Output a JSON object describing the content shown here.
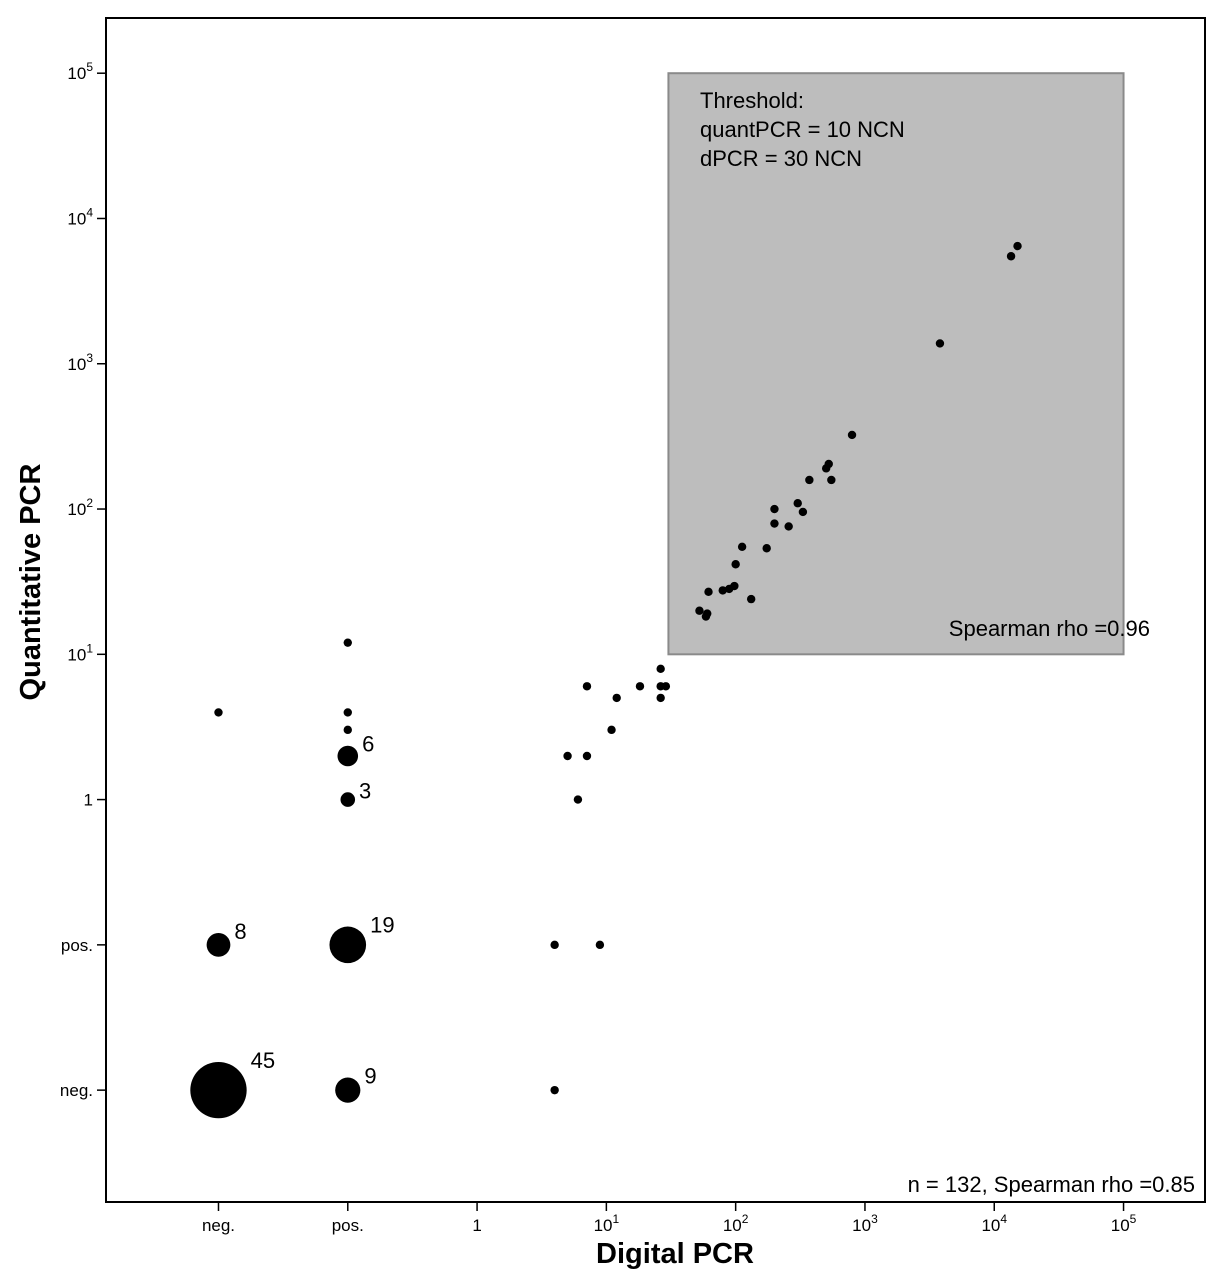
{
  "chart_data": {
    "type": "scatter",
    "title": "",
    "xlabel": "Digital PCR",
    "ylabel": "Quantitative PCR",
    "axis_scale": "categorical neg./pos. then log10",
    "xticks": [
      {
        "pos": -2,
        "base": "neg.",
        "exp": ""
      },
      {
        "pos": -1,
        "base": "pos.",
        "exp": ""
      },
      {
        "pos": 0,
        "base": "1",
        "exp": ""
      },
      {
        "pos": 1,
        "base": "10",
        "exp": "1"
      },
      {
        "pos": 2,
        "base": "10",
        "exp": "2"
      },
      {
        "pos": 3,
        "base": "10",
        "exp": "3"
      },
      {
        "pos": 4,
        "base": "10",
        "exp": "4"
      },
      {
        "pos": 5,
        "base": "10",
        "exp": "5"
      }
    ],
    "yticks": [
      {
        "pos": -2,
        "base": "neg.",
        "exp": ""
      },
      {
        "pos": -1,
        "base": "pos.",
        "exp": ""
      },
      {
        "pos": 0,
        "base": "1",
        "exp": ""
      },
      {
        "pos": 1,
        "base": "10",
        "exp": "1"
      },
      {
        "pos": 2,
        "base": "10",
        "exp": "2"
      },
      {
        "pos": 3,
        "base": "10",
        "exp": "3"
      },
      {
        "pos": 4,
        "base": "10",
        "exp": "4"
      },
      {
        "pos": 5,
        "base": "10",
        "exp": "5"
      }
    ],
    "xlim": [
      -2.87,
      5.63
    ],
    "ylim": [
      -2.77,
      5.38
    ],
    "threshold_box": {
      "x_from": 1.48,
      "x_to": 5.0,
      "y_from": 1.0,
      "y_to": 5.0,
      "title": "Threshold:",
      "line1": "quantPCR = 10 NCN",
      "line2": "dPCR = 30 NCN",
      "stat": "Spearman  rho =0.96"
    },
    "summary": "n =  132, Spearman  rho =0.85",
    "points": [
      {
        "x": -2,
        "y": -2,
        "count": 45,
        "label": "45"
      },
      {
        "x": -1,
        "y": -2,
        "count": 9,
        "label": "9"
      },
      {
        "x": 0.6,
        "y": -2,
        "count": 1,
        "label": ""
      },
      {
        "x": -2,
        "y": -1,
        "count": 8,
        "label": "8"
      },
      {
        "x": -1,
        "y": -1,
        "count": 19,
        "label": "19"
      },
      {
        "x": 0.6,
        "y": -1,
        "count": 1,
        "label": ""
      },
      {
        "x": 0.95,
        "y": -1,
        "count": 1,
        "label": ""
      },
      {
        "x": -1,
        "y": 0,
        "count": 3,
        "label": "3"
      },
      {
        "x": -1,
        "y": 0.3,
        "count": 6,
        "label": "6"
      },
      {
        "x": -1,
        "y": 0.48,
        "count": 1,
        "label": ""
      },
      {
        "x": -1,
        "y": 0.6,
        "count": 1,
        "label": ""
      },
      {
        "x": -1,
        "y": 1.08,
        "count": 1,
        "label": ""
      },
      {
        "x": -2,
        "y": 0.6,
        "count": 1,
        "label": ""
      },
      {
        "x": 0.78,
        "y": 0,
        "count": 1,
        "label": ""
      },
      {
        "x": 0.7,
        "y": 0.3,
        "count": 1,
        "label": ""
      },
      {
        "x": 0.85,
        "y": 0.3,
        "count": 1,
        "label": ""
      },
      {
        "x": 0.85,
        "y": 0.78,
        "count": 1,
        "label": ""
      },
      {
        "x": 1.04,
        "y": 0.48,
        "count": 1,
        "label": ""
      },
      {
        "x": 1.08,
        "y": 0.7,
        "count": 1,
        "label": ""
      },
      {
        "x": 1.26,
        "y": 0.78,
        "count": 1,
        "label": ""
      },
      {
        "x": 1.42,
        "y": 0.7,
        "count": 1,
        "label": ""
      },
      {
        "x": 1.42,
        "y": 0.78,
        "count": 1,
        "label": ""
      },
      {
        "x": 1.42,
        "y": 0.9,
        "count": 1,
        "label": ""
      },
      {
        "x": 1.46,
        "y": 0.78,
        "count": 1,
        "label": ""
      },
      {
        "x": 1.72,
        "y": 1.3,
        "count": 1,
        "label": ""
      },
      {
        "x": 1.77,
        "y": 1.26,
        "count": 1,
        "label": ""
      },
      {
        "x": 1.78,
        "y": 1.28,
        "count": 1,
        "label": ""
      },
      {
        "x": 1.79,
        "y": 1.43,
        "count": 1,
        "label": ""
      },
      {
        "x": 1.9,
        "y": 1.44,
        "count": 1,
        "label": ""
      },
      {
        "x": 1.95,
        "y": 1.45,
        "count": 1,
        "label": ""
      },
      {
        "x": 1.99,
        "y": 1.47,
        "count": 1,
        "label": ""
      },
      {
        "x": 2.0,
        "y": 1.62,
        "count": 1,
        "label": ""
      },
      {
        "x": 2.05,
        "y": 1.74,
        "count": 1,
        "label": ""
      },
      {
        "x": 2.12,
        "y": 1.38,
        "count": 1,
        "label": ""
      },
      {
        "x": 2.24,
        "y": 1.73,
        "count": 1,
        "label": ""
      },
      {
        "x": 2.3,
        "y": 1.9,
        "count": 1,
        "label": ""
      },
      {
        "x": 2.3,
        "y": 2.0,
        "count": 1,
        "label": ""
      },
      {
        "x": 2.41,
        "y": 1.88,
        "count": 1,
        "label": ""
      },
      {
        "x": 2.48,
        "y": 2.04,
        "count": 1,
        "label": ""
      },
      {
        "x": 2.52,
        "y": 1.98,
        "count": 1,
        "label": ""
      },
      {
        "x": 2.57,
        "y": 2.2,
        "count": 1,
        "label": ""
      },
      {
        "x": 2.7,
        "y": 2.28,
        "count": 1,
        "label": ""
      },
      {
        "x": 2.72,
        "y": 2.31,
        "count": 1,
        "label": ""
      },
      {
        "x": 2.74,
        "y": 2.2,
        "count": 1,
        "label": ""
      },
      {
        "x": 2.9,
        "y": 2.51,
        "count": 1,
        "label": ""
      },
      {
        "x": 3.58,
        "y": 3.14,
        "count": 1,
        "label": ""
      },
      {
        "x": 4.13,
        "y": 3.74,
        "count": 1,
        "label": ""
      },
      {
        "x": 4.18,
        "y": 3.81,
        "count": 1,
        "label": ""
      }
    ]
  }
}
